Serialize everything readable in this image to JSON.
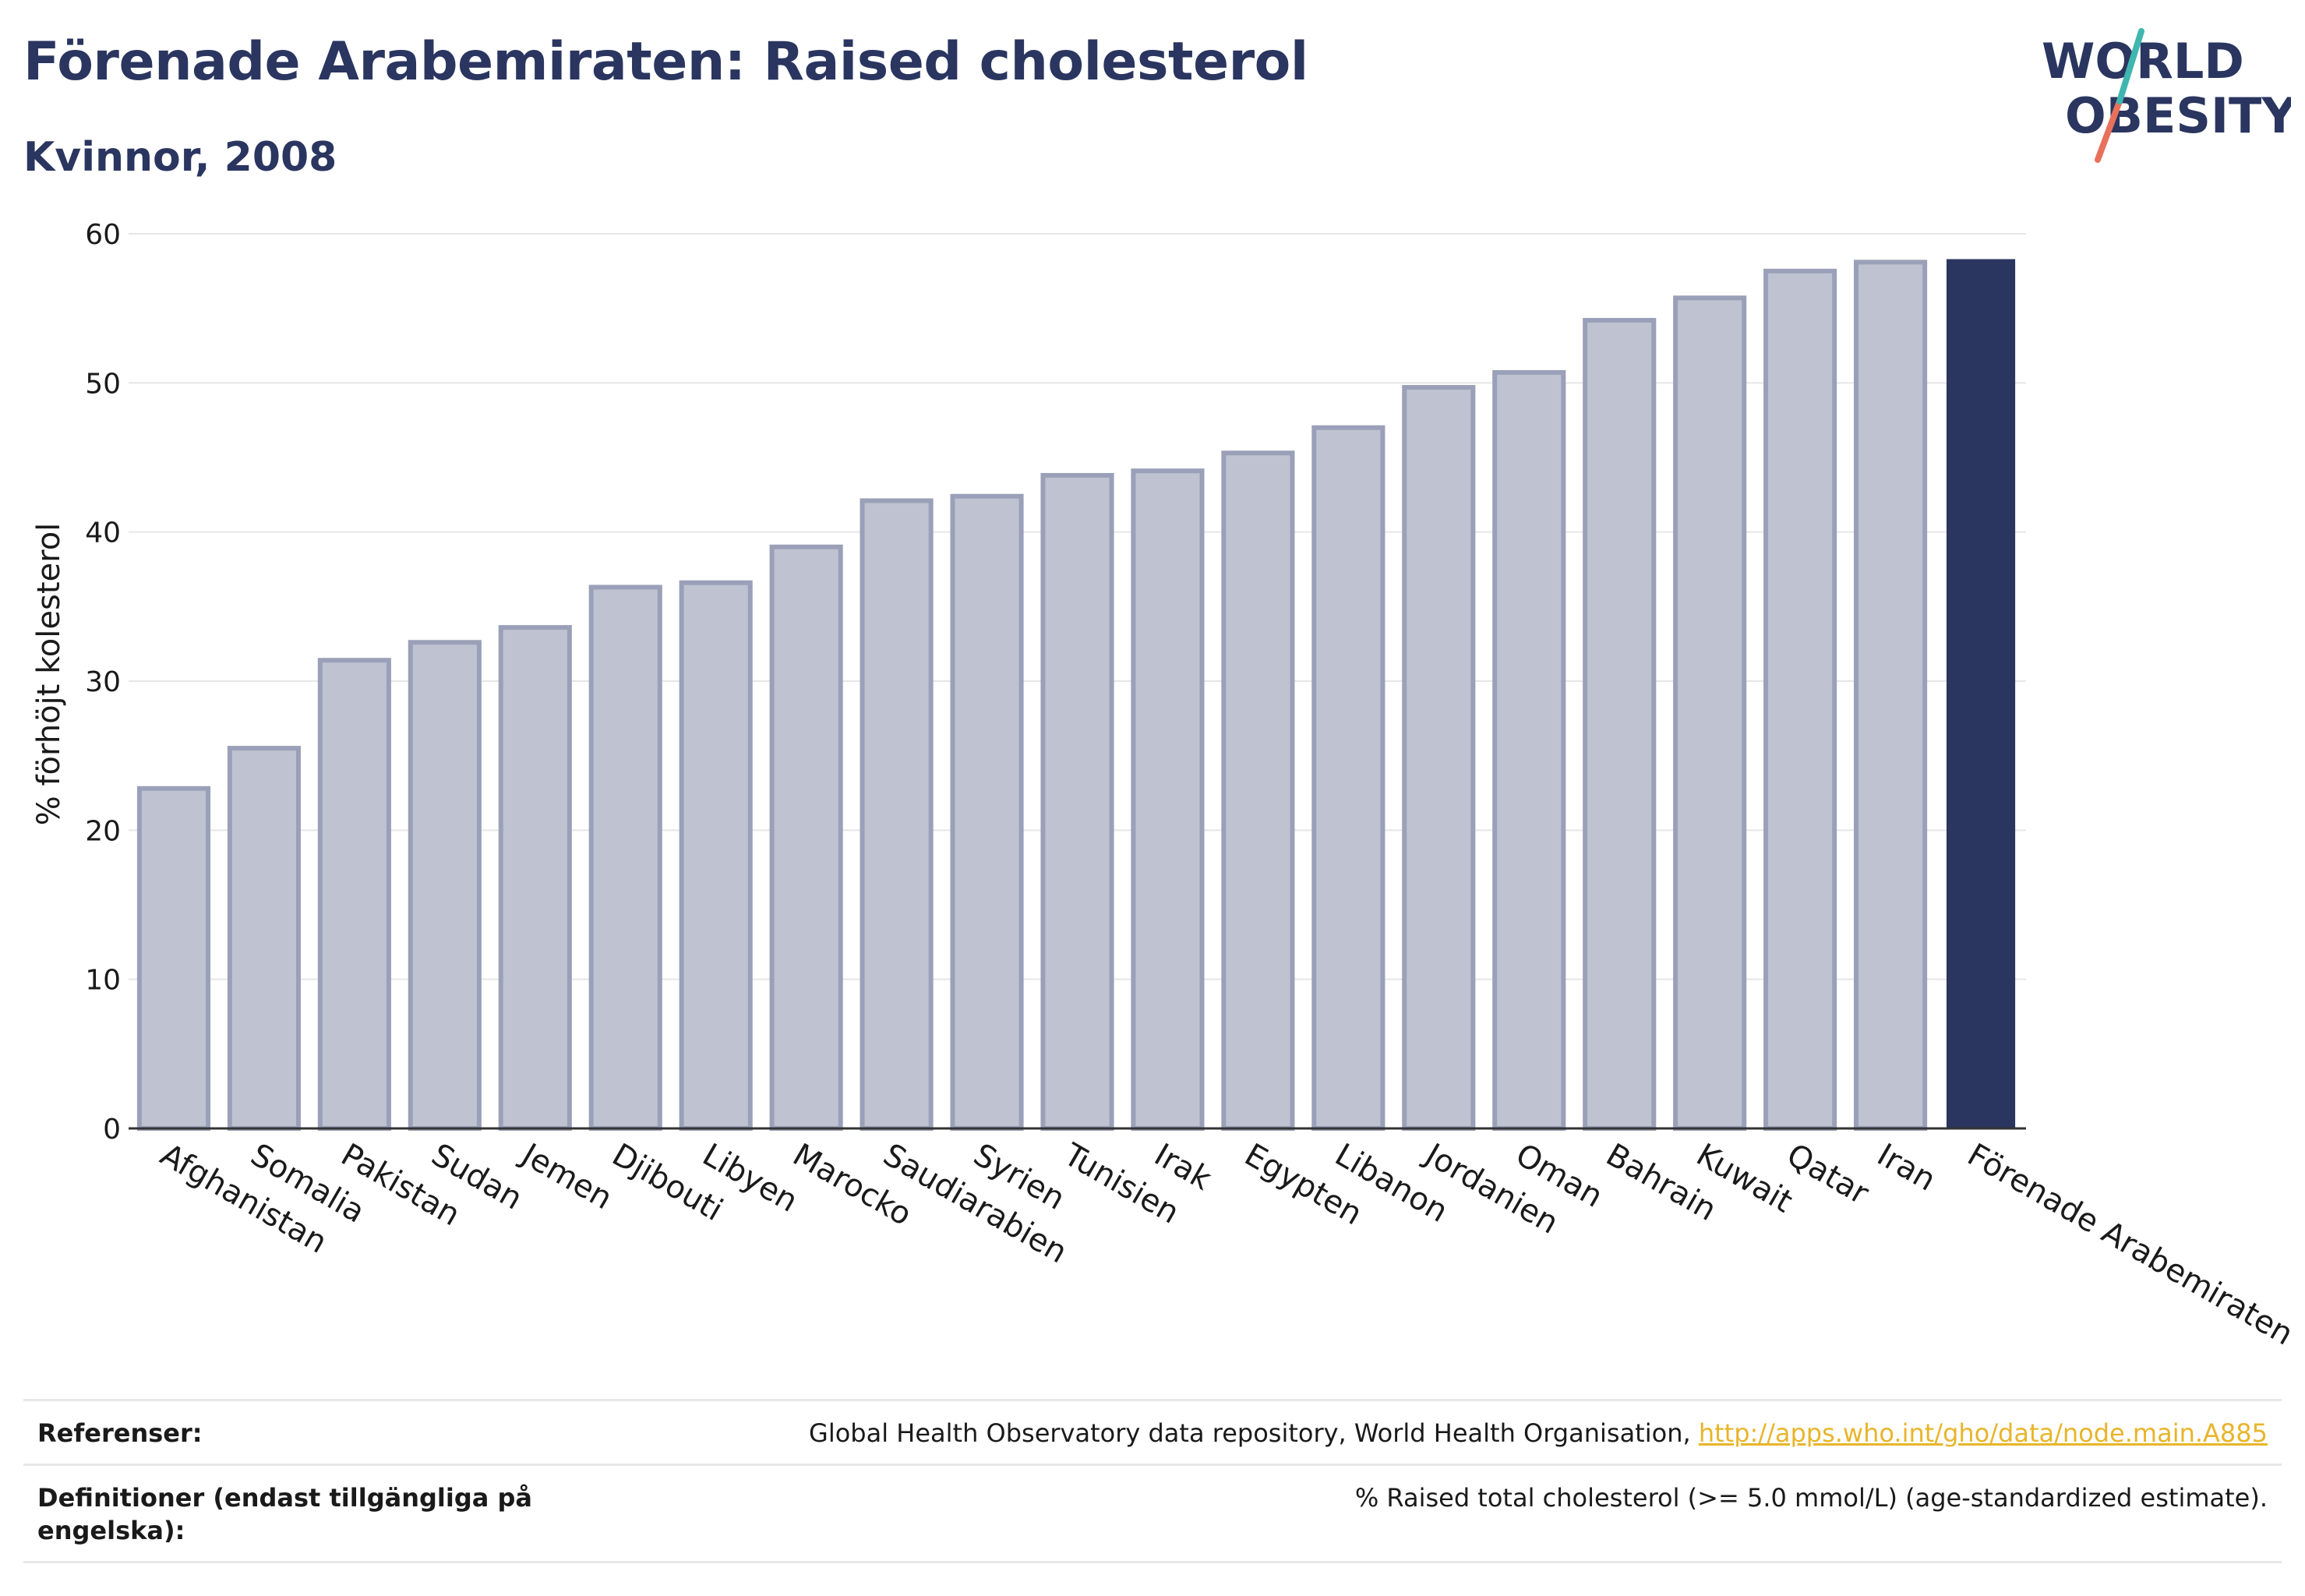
{
  "header": {
    "title": "Förenade Arabemiraten: Raised cholesterol",
    "subtitle": "Kvinnor, 2008"
  },
  "logo": {
    "line1": "WORLD",
    "line2": "OBESITY",
    "accent_colors": [
      "#3fb7b0",
      "#e8715c"
    ]
  },
  "chart_data": {
    "type": "bar",
    "title": "Förenade Arabemiraten: Raised cholesterol",
    "subtitle": "Kvinnor, 2008",
    "ylabel": "% förhöjt kolesterol",
    "xlabel": "",
    "ylim": [
      0,
      60
    ],
    "yticks": [
      0,
      10,
      20,
      30,
      40,
      50,
      60
    ],
    "grid": true,
    "legend": "none",
    "categories": [
      "Afghanistan",
      "Somalia",
      "Pakistan",
      "Sudan",
      "Jemen",
      "Djibouti",
      "Libyen",
      "Marocko",
      "Saudiarabien",
      "Syrien",
      "Tunisien",
      "Irak",
      "Egypten",
      "Libanon",
      "Jordanien",
      "Oman",
      "Bahrain",
      "Kuwait",
      "Qatar",
      "Iran",
      "Förenade Arabemiraten"
    ],
    "values": [
      22.8,
      25.5,
      31.4,
      32.6,
      33.6,
      36.3,
      36.6,
      39.0,
      42.1,
      42.4,
      43.8,
      44.1,
      45.3,
      47.0,
      49.7,
      50.7,
      54.2,
      55.7,
      57.5,
      58.1,
      58.3
    ],
    "highlight": "Förenade Arabemiraten",
    "colors": {
      "bar": "#bfc3d1",
      "bar_border": "#9aa0b8",
      "highlight": "#2a3560",
      "grid": "#e6e6e6"
    }
  },
  "footer": {
    "references_label": "Referenser:",
    "references_text": "Global Health Observatory data repository, World Health Organisation, ",
    "references_link": "http://apps.who.int/gho/data/node.main.A885",
    "definitions_label": "Definitioner (endast tillgängliga på engelska):",
    "definitions_text": "% Raised total cholesterol (>= 5.0 mmol/L) (age-standardized estimate)."
  }
}
